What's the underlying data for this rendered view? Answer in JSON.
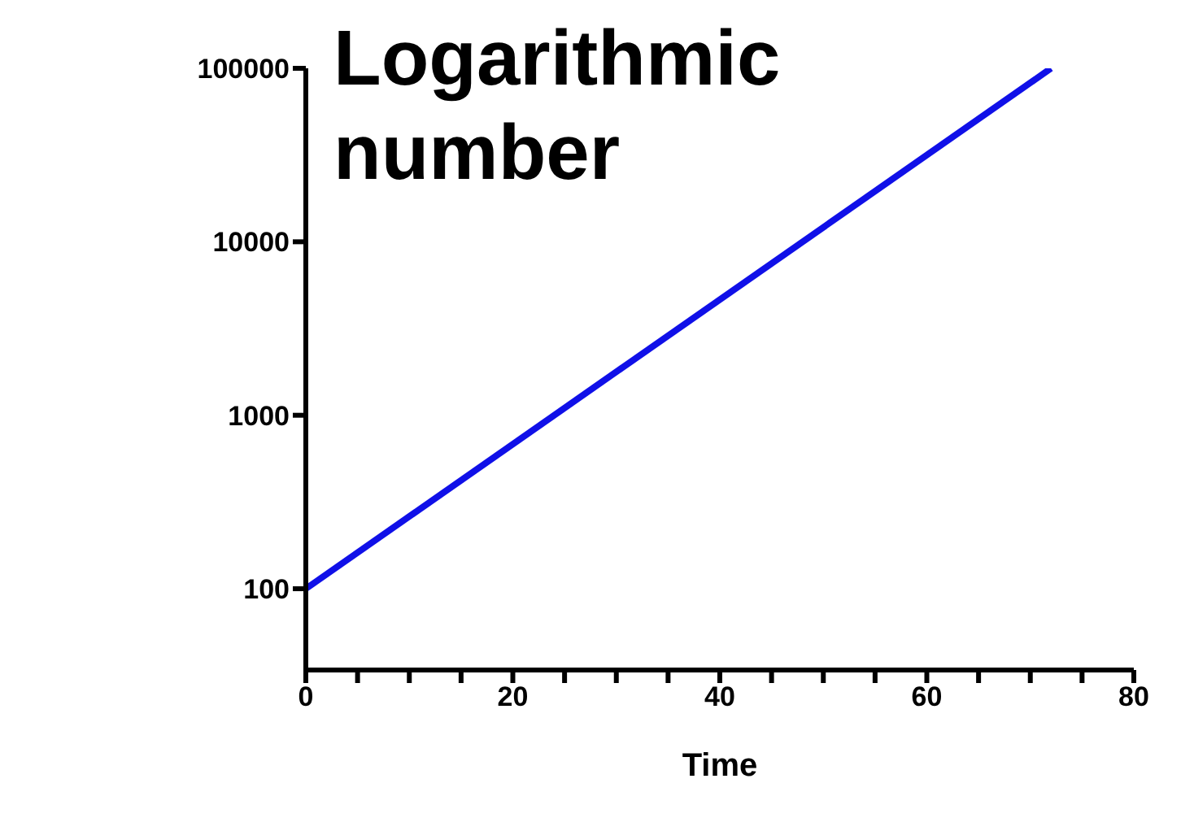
{
  "chart_data": {
    "type": "line",
    "title": "Logarithmic number",
    "xlabel": "Time",
    "x": [
      0,
      72
    ],
    "values": [
      100,
      100000
    ],
    "color": "#1010e8",
    "marker": "none",
    "log": "y",
    "xlim": [
      0,
      80
    ],
    "xticks": [
      0,
      {
        "value": 5,
        "label": null
      },
      {
        "value": 10,
        "label": null
      },
      {
        "value": 15,
        "label": null
      },
      20,
      {
        "value": 25,
        "label": null
      },
      {
        "value": 30,
        "label": null
      },
      {
        "value": 35,
        "label": null
      },
      40,
      {
        "value": 45,
        "label": null
      },
      {
        "value": 50,
        "label": null
      },
      {
        "value": 55,
        "label": null
      },
      60,
      {
        "value": 65,
        "label": null
      },
      {
        "value": 70,
        "label": null
      },
      {
        "value": 75,
        "label": null
      },
      80
    ],
    "ylim": [
      34,
      100000
    ],
    "yticks": [
      100,
      1000,
      10000,
      100000
    ]
  }
}
